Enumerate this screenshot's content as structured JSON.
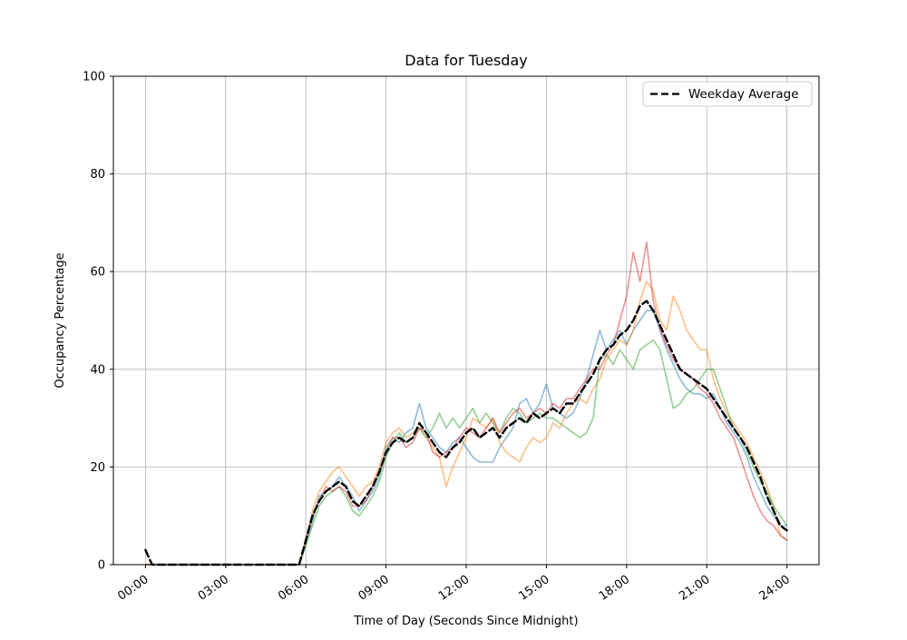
{
  "chart_data": {
    "type": "line",
    "title": "Data for Tuesday",
    "xlabel": "Time of Day (Seconds Since Midnight)",
    "ylabel": "Occupancy Percentage",
    "legend_label": "Weekday Average",
    "legend_position": "upper right",
    "grid": true,
    "ylim": [
      0,
      100
    ],
    "y_ticks": [
      0,
      20,
      40,
      60,
      80,
      100
    ],
    "xlim_hours": [
      -1.2,
      25.2
    ],
    "x_tick_hours": [
      0,
      3,
      6,
      9,
      12,
      15,
      18,
      21,
      24
    ],
    "x_tick_labels": [
      "00:00",
      "03:00",
      "06:00",
      "09:00",
      "12:00",
      "15:00",
      "18:00",
      "21:00",
      "24:00"
    ],
    "sample_step_hours": 0.25,
    "colors": {
      "grid": "#b0b0b0",
      "frame": "#000000"
    },
    "series": [
      {
        "name": "day-series-blue",
        "color": "#1f77b4",
        "alpha": 0.5,
        "style": "solid",
        "width": 1.6,
        "values": [
          0,
          0,
          0,
          0,
          0,
          0,
          0,
          0,
          0,
          0,
          0,
          0,
          0,
          0,
          0,
          0,
          0,
          0,
          0,
          0,
          0,
          0,
          0,
          0,
          4,
          9,
          14,
          15,
          16,
          18,
          16,
          14,
          11,
          13,
          15,
          18,
          24,
          26,
          25,
          27,
          28,
          33,
          28,
          26,
          24,
          23,
          25,
          26,
          24,
          22,
          21,
          21,
          21,
          24,
          26,
          28,
          33,
          34,
          31,
          33,
          37,
          32,
          31,
          30,
          31,
          34,
          38,
          43,
          48,
          44,
          46,
          48,
          45,
          48,
          50,
          52,
          52,
          48,
          44,
          41,
          38,
          36,
          35,
          35,
          34,
          35,
          32,
          29,
          27,
          25,
          22,
          18,
          15,
          12,
          10,
          8,
          8
        ]
      },
      {
        "name": "day-series-orange",
        "color": "#ff7f0e",
        "alpha": 0.5,
        "style": "solid",
        "width": 1.6,
        "values": [
          0,
          0,
          0,
          0,
          0,
          0,
          0,
          0,
          0,
          0,
          0,
          0,
          0,
          0,
          0,
          0,
          0,
          0,
          0,
          0,
          0,
          0,
          0,
          0,
          5,
          11,
          15,
          17,
          19,
          20,
          18,
          16,
          14,
          16,
          17,
          20,
          25,
          27,
          28,
          26,
          27,
          28,
          26,
          24,
          22,
          16,
          20,
          23,
          26,
          30,
          29,
          28,
          30,
          25,
          23,
          22,
          21,
          24,
          26,
          25,
          26,
          29,
          28,
          31,
          33,
          34,
          33,
          36,
          38,
          42,
          44,
          46,
          45,
          48,
          54,
          58,
          56,
          50,
          48,
          55,
          52,
          48,
          46,
          44,
          44,
          38,
          34,
          31,
          29,
          27,
          25,
          22,
          19,
          16,
          12,
          6,
          5
        ]
      },
      {
        "name": "day-series-green",
        "color": "#2ca02c",
        "alpha": 0.5,
        "style": "solid",
        "width": 1.6,
        "values": [
          0,
          0,
          0,
          0,
          0,
          0,
          0,
          0,
          0,
          0,
          0,
          0,
          0,
          0,
          0,
          0,
          0,
          0,
          0,
          0,
          0,
          0,
          0,
          0,
          4,
          8,
          12,
          14,
          15,
          16,
          14,
          11,
          10,
          12,
          14,
          17,
          22,
          25,
          27,
          25,
          26,
          28,
          26,
          28,
          31,
          28,
          30,
          28,
          30,
          32,
          29,
          31,
          29,
          27,
          30,
          32,
          31,
          29,
          30,
          31,
          30,
          30,
          29,
          28,
          27,
          26,
          27,
          30,
          42,
          43,
          41,
          44,
          42,
          40,
          44,
          45,
          46,
          44,
          38,
          32,
          33,
          35,
          36,
          38,
          40,
          40,
          36,
          32,
          28,
          26,
          23,
          20,
          17,
          15,
          12,
          10,
          8
        ]
      },
      {
        "name": "day-series-red",
        "color": "#d62728",
        "alpha": 0.5,
        "style": "solid",
        "width": 1.6,
        "values": [
          0,
          0,
          0,
          0,
          0,
          0,
          0,
          0,
          0,
          0,
          0,
          0,
          0,
          0,
          0,
          0,
          0,
          0,
          0,
          0,
          0,
          0,
          0,
          0,
          5,
          10,
          13,
          16,
          15,
          16,
          15,
          12,
          12,
          13,
          16,
          19,
          23,
          26,
          26,
          24,
          25,
          28,
          27,
          23,
          22,
          23,
          24,
          26,
          28,
          27,
          26,
          28,
          30,
          27,
          29,
          31,
          32,
          30,
          31,
          32,
          31,
          33,
          32,
          34,
          34,
          36,
          38,
          40,
          40,
          43,
          45,
          50,
          55,
          64,
          58,
          66,
          54,
          48,
          45,
          42,
          40,
          39,
          38,
          36,
          35,
          33,
          30,
          28,
          26,
          22,
          18,
          14,
          11,
          9,
          8,
          6,
          5
        ]
      },
      {
        "name": "weekday-average",
        "color": "#000000",
        "alpha": 1,
        "style": "dashed",
        "width": 2.4,
        "values": [
          3,
          0,
          0,
          0,
          0,
          0,
          0,
          0,
          0,
          0,
          0,
          0,
          0,
          0,
          0,
          0,
          0,
          0,
          0,
          0,
          0,
          0,
          0,
          0,
          5,
          10,
          13,
          15,
          16,
          17,
          16,
          13,
          12,
          14,
          16,
          19,
          23,
          25,
          26,
          25,
          26,
          29,
          27,
          25,
          23,
          22,
          24,
          25,
          27,
          28,
          26,
          27,
          28,
          26,
          28,
          29,
          30,
          29,
          31,
          30,
          31,
          32,
          31,
          33,
          33,
          35,
          37,
          39,
          42,
          44,
          45,
          47,
          48,
          50,
          53,
          54,
          52,
          49,
          46,
          43,
          40,
          39,
          38,
          37,
          36,
          34,
          32,
          30,
          28,
          26,
          24,
          21,
          18,
          14,
          11,
          8,
          7
        ]
      }
    ]
  }
}
